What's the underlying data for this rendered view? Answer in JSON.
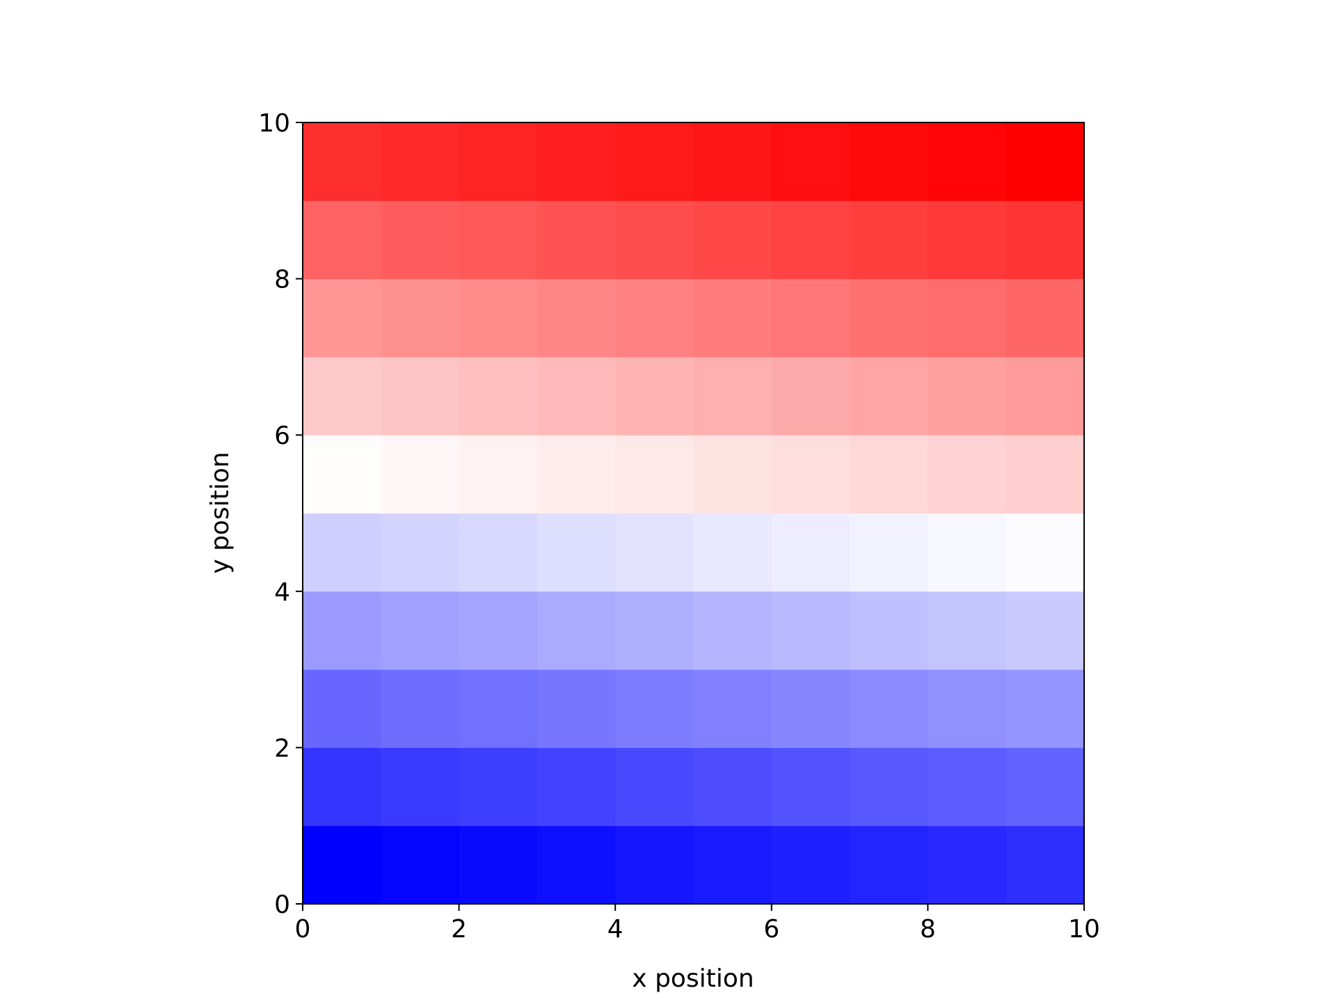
{
  "chart_data": {
    "type": "heatmap",
    "colormap": "bwr",
    "xlabel": "x position",
    "ylabel": "y position",
    "z": [
      [
        0,
        1,
        2,
        3,
        4,
        5,
        6,
        7,
        8,
        9
      ],
      [
        10,
        11,
        12,
        13,
        14,
        15,
        16,
        17,
        18,
        19
      ],
      [
        20,
        21,
        22,
        23,
        24,
        25,
        26,
        27,
        28,
        29
      ],
      [
        30,
        31,
        32,
        33,
        34,
        35,
        36,
        37,
        38,
        39
      ],
      [
        40,
        41,
        42,
        43,
        44,
        45,
        46,
        47,
        48,
        49
      ],
      [
        50,
        51,
        52,
        53,
        54,
        55,
        56,
        57,
        58,
        59
      ],
      [
        60,
        61,
        62,
        63,
        64,
        65,
        66,
        67,
        68,
        69
      ],
      [
        70,
        71,
        72,
        73,
        74,
        75,
        76,
        77,
        78,
        79
      ],
      [
        80,
        81,
        82,
        83,
        84,
        85,
        86,
        87,
        88,
        89
      ],
      [
        90,
        91,
        92,
        93,
        94,
        95,
        96,
        97,
        98,
        99
      ]
    ],
    "xlim": [
      0,
      10
    ],
    "ylim": [
      0,
      10
    ],
    "xticks": [
      0,
      2,
      4,
      6,
      8,
      10
    ],
    "yticks": [
      0,
      2,
      4,
      6,
      8,
      10
    ]
  }
}
